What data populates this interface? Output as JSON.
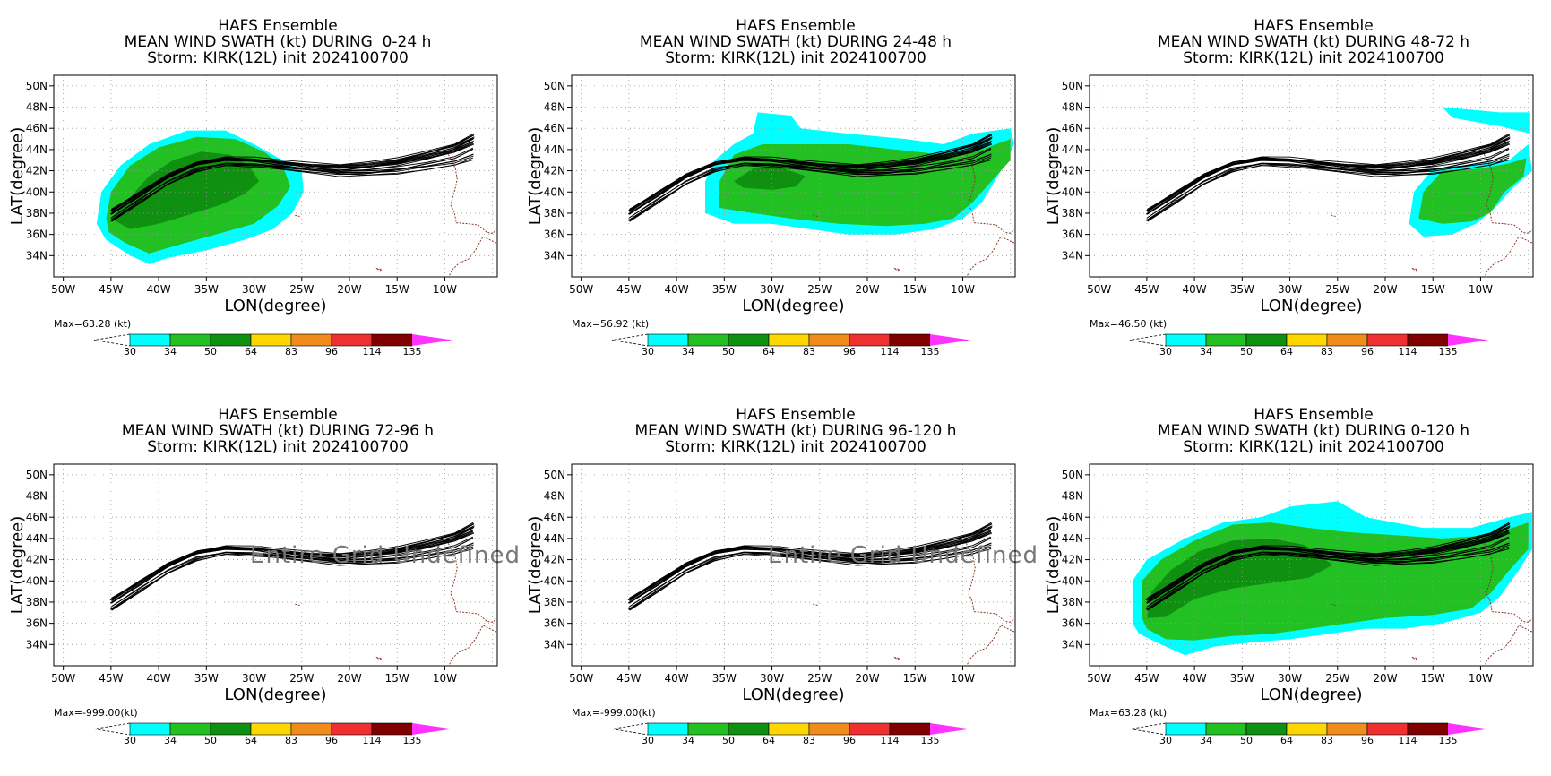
{
  "common": {
    "title_line1": "HAFS Ensemble",
    "title_line3": "Storm: KIRK(12L) init 2024100700",
    "xlabel": "LON(degree)",
    "ylabel": "LAT(degree)",
    "x_ticks": [
      "50W",
      "45W",
      "40W",
      "35W",
      "30W",
      "25W",
      "20W",
      "15W",
      "10W"
    ],
    "y_ticks": [
      "50N",
      "48N",
      "46N",
      "44N",
      "42N",
      "40N",
      "38N",
      "36N",
      "34N"
    ],
    "colorbar_values": [
      "30",
      "34",
      "50",
      "64",
      "83",
      "96",
      "114",
      "135"
    ],
    "colorbar_colors": [
      "#00ffff",
      "#22c022",
      "#109010",
      "#ffd700",
      "#f08c1e",
      "#ee3030",
      "#800000",
      "#ff33ff"
    ],
    "undefined_label": "Entire Grid Undefined"
  },
  "chart_data": [
    {
      "type": "heatmap",
      "title": "HAFS Ensemble",
      "subtitle": "MEAN WIND SWATH (kt) DURING  0-24 h",
      "storm_line": "Storm: KIRK(12L) init 2024100700",
      "max_label": "Max=63.28 (kt)",
      "swath": "0-24",
      "grid": true,
      "xlim": [
        "50W",
        "5W"
      ],
      "ylim": [
        "32N",
        "51N"
      ]
    },
    {
      "type": "heatmap",
      "title": "HAFS Ensemble",
      "subtitle": "MEAN WIND SWATH (kt) DURING 24-48 h",
      "storm_line": "Storm: KIRK(12L) init 2024100700",
      "max_label": "Max=56.92 (kt)",
      "swath": "24-48",
      "grid": true,
      "xlim": [
        "50W",
        "5W"
      ],
      "ylim": [
        "32N",
        "51N"
      ]
    },
    {
      "type": "heatmap",
      "title": "HAFS Ensemble",
      "subtitle": "MEAN WIND SWATH (kt) DURING 48-72 h",
      "storm_line": "Storm: KIRK(12L) init 2024100700",
      "max_label": "Max=46.50 (kt)",
      "swath": "48-72",
      "grid": true,
      "xlim": [
        "50W",
        "5W"
      ],
      "ylim": [
        "32N",
        "51N"
      ]
    },
    {
      "type": "heatmap",
      "title": "HAFS Ensemble",
      "subtitle": "MEAN WIND SWATH (kt) DURING 72-96 h",
      "storm_line": "Storm: KIRK(12L) init 2024100700",
      "max_label": "Max=-999.00(kt)",
      "swath": "none",
      "grid": true,
      "xlim": [
        "50W",
        "5W"
      ],
      "ylim": [
        "32N",
        "51N"
      ]
    },
    {
      "type": "heatmap",
      "title": "HAFS Ensemble",
      "subtitle": "MEAN WIND SWATH (kt) DURING 96-120 h",
      "storm_line": "Storm: KIRK(12L) init 2024100700",
      "max_label": "Max=-999.00(kt)",
      "swath": "none",
      "grid": true,
      "xlim": [
        "50W",
        "5W"
      ],
      "ylim": [
        "32N",
        "51N"
      ]
    },
    {
      "type": "heatmap",
      "title": "HAFS Ensemble",
      "subtitle": "MEAN WIND SWATH (kt) DURING 0-120 h",
      "storm_line": "Storm: KIRK(12L) init 2024100700",
      "max_label": "Max=63.28 (kt)",
      "swath": "0-120",
      "grid": true,
      "xlim": [
        "50W",
        "5W"
      ],
      "ylim": [
        "32N",
        "51N"
      ]
    }
  ]
}
